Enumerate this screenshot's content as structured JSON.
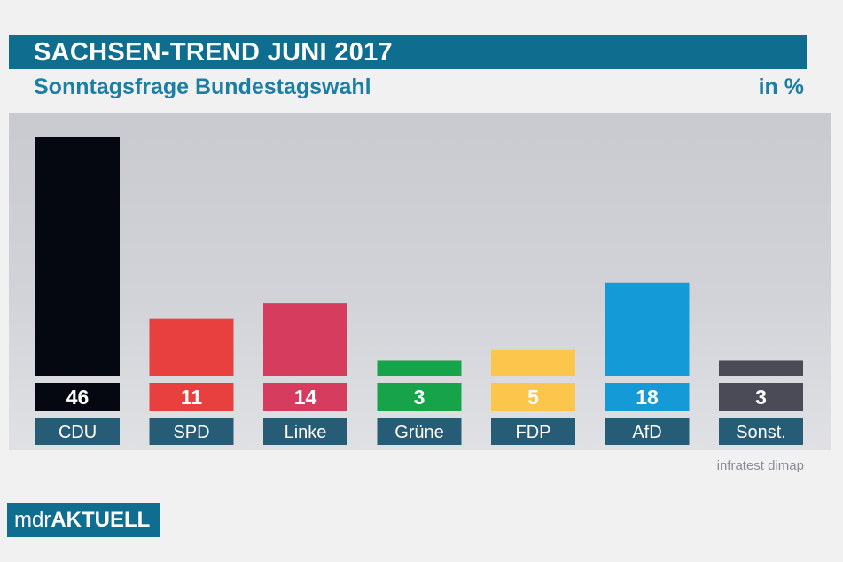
{
  "chart_data": {
    "type": "bar",
    "title": "SACHSEN-TREND JUNI 2017",
    "subtitle": "Sonntagsfrage Bundestagswahl",
    "unit_label": "in %",
    "categories": [
      "CDU",
      "SPD",
      "Linke",
      "Grüne",
      "FDP",
      "AfD",
      "Sonst."
    ],
    "values": [
      46,
      11,
      14,
      3,
      5,
      18,
      3
    ],
    "colors": [
      "#050811",
      "#e8403e",
      "#d63c5e",
      "#16a34a",
      "#fbc64b",
      "#149ad6",
      "#4b4a57"
    ],
    "ylim": [
      0,
      46
    ],
    "source": "infratest dimap"
  },
  "logo": {
    "part1": "mdr",
    "part2": "AKTUELL"
  },
  "style": {
    "label_bg": "#265c75",
    "brand": "#0f6d8f"
  }
}
